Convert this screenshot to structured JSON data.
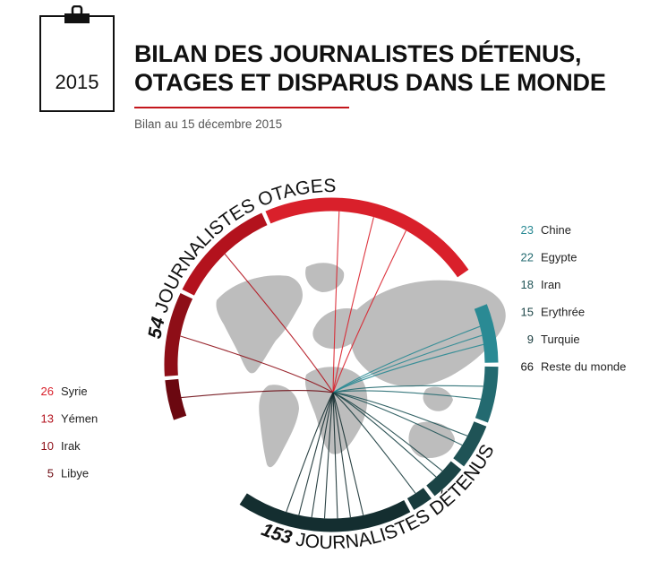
{
  "header": {
    "year": "2015",
    "title_line1": "BILAN DES JOURNALISTES DÉTENUS,",
    "title_line2": "OTAGES ET DISPARUS DANS LE MONDE",
    "subtitle": "Bilan au 15 décembre 2015"
  },
  "colors": {
    "hostage_dark": "#b3121d",
    "accent_rule": "#c4161c",
    "detained_teal": "#2a8a94",
    "detained_dark": "#163638",
    "map_grey": "#bdbdbd"
  },
  "chart_data": {
    "type": "pie",
    "groups": [
      {
        "name": "otages",
        "total": "54",
        "label": "JOURNALISTES OTAGES",
        "items": [
          {
            "country": "Syrie",
            "value": 26,
            "color": "#d9202b"
          },
          {
            "country": "Yémen",
            "value": 13,
            "color": "#b3121d"
          },
          {
            "country": "Irak",
            "value": 10,
            "color": "#8e0e17"
          },
          {
            "country": "Libye",
            "value": 5,
            "color": "#6b0810"
          }
        ]
      },
      {
        "name": "detenus",
        "total": "153",
        "label": "JOURNALISTES DÉTENUS",
        "items": [
          {
            "country": "Chine",
            "value": 23,
            "color": "#2a8a94"
          },
          {
            "country": "Egypte",
            "value": 22,
            "color": "#236a70"
          },
          {
            "country": "Iran",
            "value": 18,
            "color": "#1f5356"
          },
          {
            "country": "Erythrée",
            "value": 15,
            "color": "#1b4446"
          },
          {
            "country": "Turquie",
            "value": 9,
            "color": "#183b3d"
          },
          {
            "country": "Reste du monde",
            "value": 66,
            "color": "#142e30"
          }
        ]
      }
    ]
  }
}
